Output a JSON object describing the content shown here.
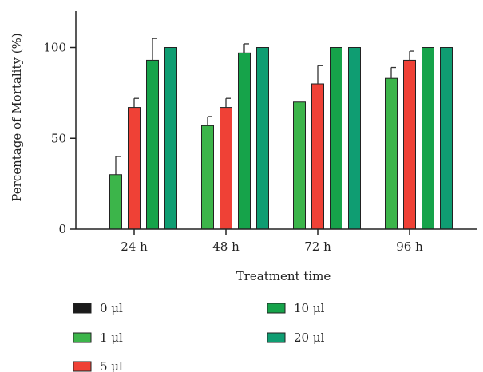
{
  "chart_data": {
    "type": "bar",
    "title": "",
    "xlabel": "Treatment time",
    "ylabel": "Percentage of Mortality (%)",
    "ylim": [
      0,
      120
    ],
    "yticks": [
      0,
      50,
      100
    ],
    "grid": false,
    "legend_position": "bottom",
    "categories": [
      "24 h",
      "48 h",
      "72 h",
      "96 h"
    ],
    "series": [
      {
        "name": "0 μl",
        "color": "#1a1a1a",
        "values": [
          0,
          0,
          0,
          0
        ],
        "errors": [
          0,
          0,
          0,
          0
        ]
      },
      {
        "name": "1 μl",
        "color": "#3cb54a",
        "values": [
          30,
          57,
          70,
          83
        ],
        "errors": [
          10,
          5,
          0,
          6
        ]
      },
      {
        "name": "5 μl",
        "color": "#ef4136",
        "values": [
          67,
          67,
          80,
          93
        ],
        "errors": [
          5,
          5,
          10,
          5
        ]
      },
      {
        "name": "10 μl",
        "color": "#16a34a",
        "values": [
          93,
          97,
          100,
          100
        ],
        "errors": [
          12,
          5,
          0,
          0
        ]
      },
      {
        "name": "20 μl",
        "color": "#0f9d72",
        "values": [
          100,
          100,
          100,
          100
        ],
        "errors": [
          0,
          0,
          0,
          0
        ]
      }
    ]
  }
}
